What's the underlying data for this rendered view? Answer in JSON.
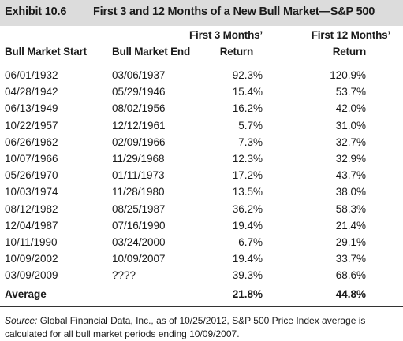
{
  "title": {
    "number": "Exhibit 10.6",
    "text": "First 3 and 12 Months of a New Bull Market—S&P 500"
  },
  "headers": {
    "start": "Bull Market Start",
    "end": "Bull Market End",
    "r3_line1": "First 3 Months’",
    "r3_line2": "Return",
    "r12_line1": "First 12 Months’",
    "r12_line2": "Return"
  },
  "rows": [
    {
      "start": "06/01/1932",
      "end": "03/06/1937",
      "r3": "92.3%",
      "r12": "120.9%"
    },
    {
      "start": "04/28/1942",
      "end": "05/29/1946",
      "r3": "15.4%",
      "r12": "53.7%"
    },
    {
      "start": "06/13/1949",
      "end": "08/02/1956",
      "r3": "16.2%",
      "r12": "42.0%"
    },
    {
      "start": "10/22/1957",
      "end": "12/12/1961",
      "r3": "5.7%",
      "r12": "31.0%"
    },
    {
      "start": "06/26/1962",
      "end": "02/09/1966",
      "r3": "7.3%",
      "r12": "32.7%"
    },
    {
      "start": "10/07/1966",
      "end": "11/29/1968",
      "r3": "12.3%",
      "r12": "32.9%"
    },
    {
      "start": "05/26/1970",
      "end": "01/11/1973",
      "r3": "17.2%",
      "r12": "43.7%"
    },
    {
      "start": "10/03/1974",
      "end": "11/28/1980",
      "r3": "13.5%",
      "r12": "38.0%"
    },
    {
      "start": "08/12/1982",
      "end": "08/25/1987",
      "r3": "36.2%",
      "r12": "58.3%"
    },
    {
      "start": "12/04/1987",
      "end": "07/16/1990",
      "r3": "19.4%",
      "r12": "21.4%"
    },
    {
      "start": "10/11/1990",
      "end": "03/24/2000",
      "r3": "6.7%",
      "r12": "29.1%"
    },
    {
      "start": "10/09/2002",
      "end": "10/09/2007",
      "r3": "19.4%",
      "r12": "33.7%"
    },
    {
      "start": "03/09/2009",
      "end": "????",
      "r3": "39.3%",
      "r12": "68.6%"
    }
  ],
  "average": {
    "label": "Average",
    "r3": "21.8%",
    "r12": "44.8%"
  },
  "source": {
    "label": "Source:",
    "text": " Global Financial Data, Inc., as of 10/25/2012, S&P 500 Price Index average is calculated for all bull market periods ending 10/09/2007."
  },
  "colors": {
    "title_bar": "#dcdcdc",
    "text": "#1a1a1a",
    "rule": "#333333"
  }
}
